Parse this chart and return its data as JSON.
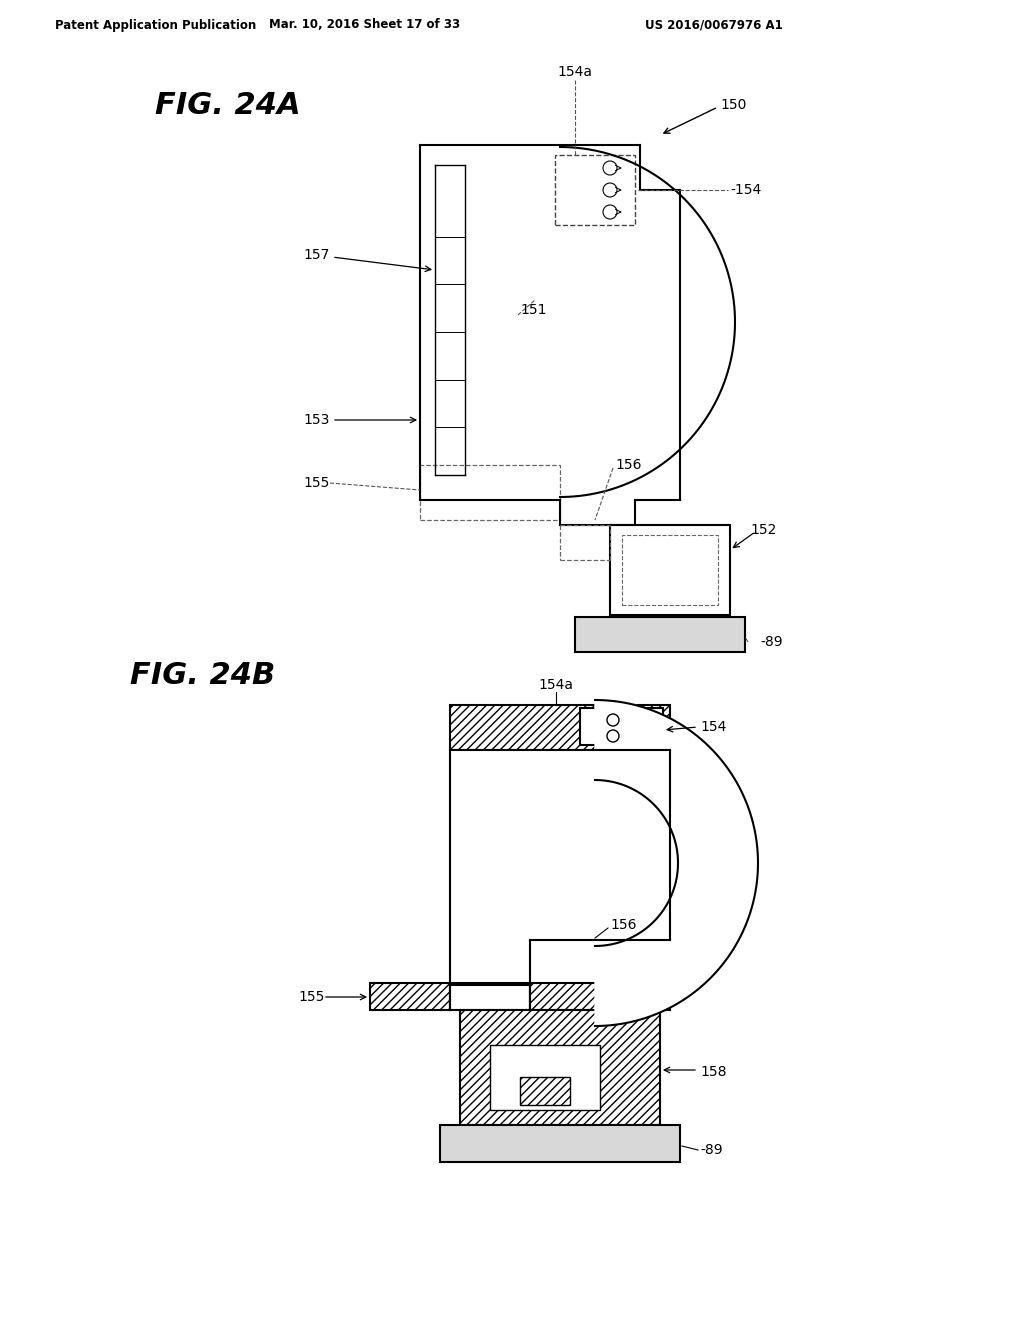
{
  "background_color": "#ffffff",
  "header_text": "Patent Application Publication",
  "header_date": "Mar. 10, 2016 Sheet 17 of 33",
  "header_patent": "US 2016/0067976 A1",
  "fig24a_title": "FIG. 24A",
  "fig24b_title": "FIG. 24B",
  "line_color": "#000000",
  "lw": 1.5,
  "fs_label": 10,
  "fs_title": 22
}
